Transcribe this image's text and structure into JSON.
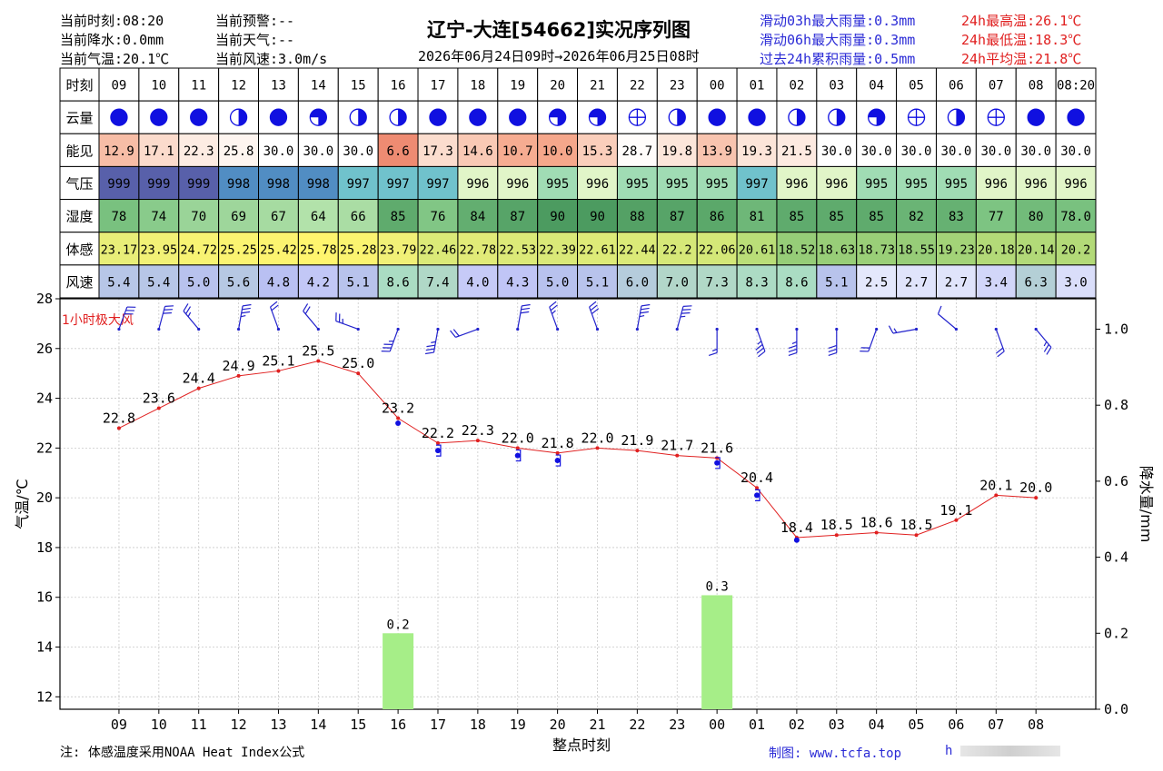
{
  "header": {
    "title": "辽宁-大连[54662]实况序列图",
    "period": "2026年06月24日09时→2026年06月25日08时",
    "left_col1": [
      "当前时刻:08:20",
      "当前降水:0.0mm",
      "当前气温:20.1℃"
    ],
    "left_col2": [
      "当前预警:--",
      "当前天气:--",
      "当前风速:3.0m/s"
    ],
    "right_blue": [
      "滑动03h最大雨量:0.3mm",
      "滑动06h最大雨量:0.3mm",
      "过去24h累积雨量:0.5mm"
    ],
    "right_red": [
      "24h最高温:26.1℃",
      "24h最低温:18.3℃",
      "24h平均温:21.8℃"
    ]
  },
  "footer": {
    "note": "注: 体感温度采用NOAA Heat Index公式",
    "credit": "制图: www.tcfa.top",
    "credit_tail": "h"
  },
  "colors": {
    "temp_line": "#e02020",
    "rain_bar": "#a6ee88",
    "blue": "#1010e0",
    "wind_barb": "#2222cc"
  },
  "table": {
    "row_labels": [
      "时刻",
      "云量",
      "能见",
      "气压",
      "湿度",
      "体感",
      "风速"
    ],
    "times": [
      "09",
      "10",
      "11",
      "12",
      "13",
      "14",
      "15",
      "16",
      "17",
      "18",
      "19",
      "20",
      "21",
      "22",
      "23",
      "00",
      "01",
      "02",
      "03",
      "04",
      "05",
      "06",
      "07",
      "08",
      "08:20"
    ],
    "cloud": [
      "full",
      "full",
      "full",
      "half",
      "full",
      "threequarter",
      "half",
      "half",
      "full",
      "full",
      "full",
      "threequarter",
      "threequarter",
      "clear",
      "half",
      "full",
      "full",
      "half",
      "half",
      "threequarter",
      "clear",
      "half",
      "clear",
      "full",
      "full"
    ],
    "visibility": [
      "12.9",
      "17.1",
      "22.3",
      "25.8",
      "30.0",
      "30.0",
      "30.0",
      "6.6",
      "17.3",
      "14.6",
      "10.7",
      "10.0",
      "15.3",
      "28.7",
      "19.8",
      "13.9",
      "19.3",
      "21.5",
      "30.0",
      "30.0",
      "30.0",
      "30.0",
      "30.0",
      "30.0",
      "30.0"
    ],
    "pressure": [
      "999",
      "999",
      "999",
      "998",
      "998",
      "998",
      "997",
      "997",
      "997",
      "996",
      "996",
      "995",
      "996",
      "995",
      "995",
      "995",
      "997",
      "996",
      "996",
      "995",
      "995",
      "995",
      "996",
      "996",
      "996"
    ],
    "humidity": [
      "78",
      "74",
      "70",
      "69",
      "67",
      "64",
      "66",
      "85",
      "76",
      "84",
      "87",
      "90",
      "90",
      "88",
      "87",
      "86",
      "81",
      "85",
      "85",
      "85",
      "82",
      "83",
      "77",
      "80",
      "78.0"
    ],
    "feels_like": [
      "23.17",
      "23.95",
      "24.72",
      "25.25",
      "25.42",
      "25.78",
      "25.28",
      "23.79",
      "22.46",
      "22.78",
      "22.53",
      "22.39",
      "22.61",
      "22.44",
      "22.2",
      "22.06",
      "20.61",
      "18.52",
      "18.63",
      "18.73",
      "18.55",
      "19.23",
      "20.18",
      "20.14",
      "20.2"
    ],
    "wind": [
      "5.4",
      "5.4",
      "5.0",
      "5.6",
      "4.8",
      "4.2",
      "5.1",
      "8.6",
      "7.4",
      "4.0",
      "4.3",
      "5.0",
      "5.1",
      "6.0",
      "7.0",
      "7.3",
      "8.3",
      "8.6",
      "5.1",
      "2.5",
      "2.7",
      "2.7",
      "3.4",
      "6.3",
      "3.0"
    ]
  },
  "chart_data": {
    "type": "line",
    "xlabel": "整点时刻",
    "ylabel_left": "气温/℃",
    "ylabel_right": "降水量/mm",
    "ylim_left": [
      11.5,
      28
    ],
    "ylim_right": [
      0,
      1.08
    ],
    "yticks_left": [
      12,
      14,
      16,
      18,
      20,
      22,
      24,
      26,
      28
    ],
    "yticks_right": [
      "0.0",
      "0.2",
      "0.4",
      "0.6",
      "0.8",
      "1.0"
    ],
    "categories": [
      "09",
      "10",
      "11",
      "12",
      "13",
      "14",
      "15",
      "16",
      "17",
      "18",
      "19",
      "20",
      "21",
      "22",
      "23",
      "00",
      "01",
      "02",
      "03",
      "04",
      "05",
      "06",
      "07",
      "08"
    ],
    "grid": true,
    "series": [
      {
        "type": "line",
        "values": [
          22.8,
          23.6,
          24.4,
          24.9,
          25.1,
          25.5,
          25.0,
          23.2,
          22.2,
          22.3,
          22.0,
          21.8,
          22.0,
          21.9,
          21.7,
          21.6,
          20.4,
          18.4,
          18.5,
          18.6,
          18.5,
          19.1,
          20.1,
          20.0
        ],
        "labels": [
          "22.8",
          "23.6",
          "24.4",
          "24.9",
          "25.1",
          "25.5",
          "25.0",
          "23.2",
          "22.2",
          "22.3",
          "22.0",
          "21.8",
          "22.0",
          "21.9",
          "21.7",
          "21.6",
          "20.4",
          "18.4",
          "18.5",
          "18.6",
          "18.5",
          "19.1",
          "20.1",
          "20.0"
        ]
      },
      {
        "type": "bar",
        "axis": "right",
        "values": [
          0,
          0,
          0,
          0,
          0,
          0,
          0,
          0.2,
          0,
          0,
          0,
          0,
          0,
          0,
          0,
          0.3,
          0,
          0,
          0,
          0,
          0,
          0,
          0,
          0
        ]
      }
    ],
    "blue_markers": [
      {
        "x": "16",
        "y": 23.0
      },
      {
        "x": "17",
        "y": 21.9
      },
      {
        "x": "19",
        "y": 21.7
      },
      {
        "x": "20",
        "y": 21.5
      },
      {
        "x": "00",
        "y": 21.4
      },
      {
        "x": "01",
        "y": 20.1
      },
      {
        "x": "02",
        "y": 18.3
      }
    ],
    "gust_label": "1小时极大风",
    "gust_barbs": [
      {
        "x": "09",
        "dir": 20,
        "spd": 12
      },
      {
        "x": "10",
        "dir": 15,
        "spd": 12
      },
      {
        "x": "11",
        "dir": 320,
        "spd": 10
      },
      {
        "x": "12",
        "dir": 10,
        "spd": 14
      },
      {
        "x": "13",
        "dir": 340,
        "spd": 8
      },
      {
        "x": "14",
        "dir": 320,
        "spd": 8
      },
      {
        "x": "15",
        "dir": 290,
        "spd": 10
      },
      {
        "x": "16",
        "dir": 200,
        "spd": 14
      },
      {
        "x": "17",
        "dir": 190,
        "spd": 14
      },
      {
        "x": "18",
        "dir": 250,
        "spd": 8
      },
      {
        "x": "19",
        "dir": 10,
        "spd": 12
      },
      {
        "x": "20",
        "dir": 340,
        "spd": 10
      },
      {
        "x": "21",
        "dir": 340,
        "spd": 12
      },
      {
        "x": "22",
        "dir": 10,
        "spd": 14
      },
      {
        "x": "23",
        "dir": 15,
        "spd": 14
      },
      {
        "x": "00",
        "dir": 180,
        "spd": 6
      },
      {
        "x": "01",
        "dir": 160,
        "spd": 14
      },
      {
        "x": "02",
        "dir": 180,
        "spd": 14
      },
      {
        "x": "03",
        "dir": 180,
        "spd": 12
      },
      {
        "x": "04",
        "dir": 200,
        "spd": 8
      },
      {
        "x": "05",
        "dir": 260,
        "spd": 6
      },
      {
        "x": "06",
        "dir": 310,
        "spd": 4
      },
      {
        "x": "07",
        "dir": 160,
        "spd": 8
      },
      {
        "x": "08",
        "dir": 140,
        "spd": 10
      }
    ]
  }
}
